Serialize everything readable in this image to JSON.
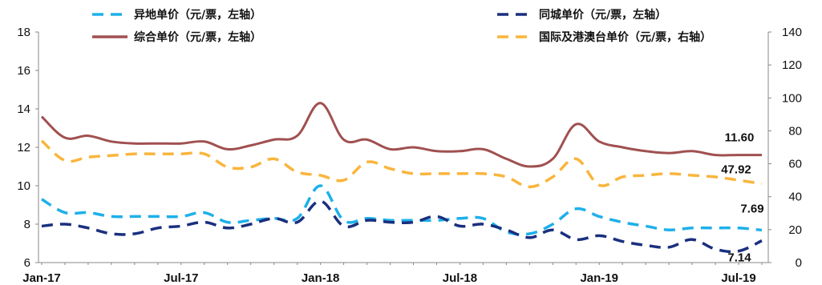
{
  "chart_data": {
    "type": "line",
    "x": [
      "Jan-17",
      "Feb-17",
      "Mar-17",
      "Apr-17",
      "May-17",
      "Jun-17",
      "Jul-17",
      "Aug-17",
      "Sep-17",
      "Oct-17",
      "Nov-17",
      "Dec-17",
      "Jan-18",
      "Feb-18",
      "Mar-18",
      "Apr-18",
      "May-18",
      "Jun-18",
      "Jul-18",
      "Aug-18",
      "Sep-18",
      "Oct-18",
      "Nov-18",
      "Dec-18",
      "Jan-19",
      "Feb-19",
      "Mar-19",
      "Apr-19",
      "May-19",
      "Jun-19",
      "Jul-19",
      "Aug-19"
    ],
    "x_tick_labels": [
      "Jan-17",
      "Jul-17",
      "Jan-18",
      "Jul-18",
      "Jan-19",
      "Jul-19"
    ],
    "y_left": {
      "min": 6,
      "max": 18,
      "ticks": [
        "6",
        "8",
        "10",
        "12",
        "14",
        "16",
        "18"
      ]
    },
    "y_right": {
      "min": 0,
      "max": 140,
      "ticks": [
        "0",
        "20",
        "40",
        "60",
        "80",
        "100",
        "120",
        "140"
      ]
    },
    "series": [
      {
        "name": "异地单价（元/票，左轴）",
        "axis": "left",
        "color": "#1eb0ea",
        "dash": "dashed",
        "values": [
          9.3,
          8.6,
          8.6,
          8.4,
          8.4,
          8.4,
          8.4,
          8.6,
          8.1,
          8.2,
          8.3,
          8.3,
          10.0,
          8.2,
          8.3,
          8.2,
          8.2,
          8.2,
          8.3,
          8.3,
          7.6,
          7.5,
          8.0,
          8.8,
          8.4,
          8.1,
          7.9,
          7.7,
          7.8,
          7.8,
          7.8,
          7.69
        ]
      },
      {
        "name": "同城单价（元/票，左轴）",
        "axis": "left",
        "color": "#1a2f7e",
        "dash": "dashed",
        "values": [
          7.9,
          8.0,
          7.8,
          7.5,
          7.5,
          7.8,
          7.9,
          8.1,
          7.8,
          8.0,
          8.3,
          8.1,
          9.2,
          7.9,
          8.2,
          8.1,
          8.1,
          8.4,
          7.9,
          8.0,
          7.7,
          7.3,
          7.7,
          7.2,
          7.4,
          7.1,
          6.9,
          6.8,
          7.2,
          6.7,
          6.6,
          7.14
        ]
      },
      {
        "name": "综合单价（元/票，左轴）",
        "axis": "left",
        "color": "#a05050",
        "dash": "solid",
        "values": [
          13.6,
          12.5,
          12.6,
          12.3,
          12.2,
          12.2,
          12.2,
          12.3,
          11.9,
          12.1,
          12.4,
          12.6,
          14.3,
          12.4,
          12.4,
          11.9,
          12.0,
          11.8,
          11.8,
          11.9,
          11.4,
          11.0,
          11.4,
          13.2,
          12.3,
          12.0,
          11.8,
          11.7,
          11.8,
          11.6,
          11.6,
          11.6
        ]
      },
      {
        "name": "国际及港澳台单价（元/票，右轴）",
        "axis": "right",
        "color": "#f9b53d",
        "dash": "dashed",
        "values": [
          74,
          62,
          64,
          65,
          66,
          66,
          66,
          66,
          58,
          58,
          63,
          55,
          53,
          50,
          61,
          57,
          54,
          54,
          54,
          54,
          52,
          46,
          52,
          63,
          47,
          52,
          53,
          54,
          53,
          52,
          50,
          47.92
        ]
      }
    ],
    "data_labels": [
      {
        "series": 2,
        "text": "11.60"
      },
      {
        "series": 3,
        "text": "47.92"
      },
      {
        "series": 0,
        "text": "7.69"
      },
      {
        "series": 1,
        "text": "7.14"
      }
    ],
    "legend_placement": "top",
    "grid": false
  }
}
